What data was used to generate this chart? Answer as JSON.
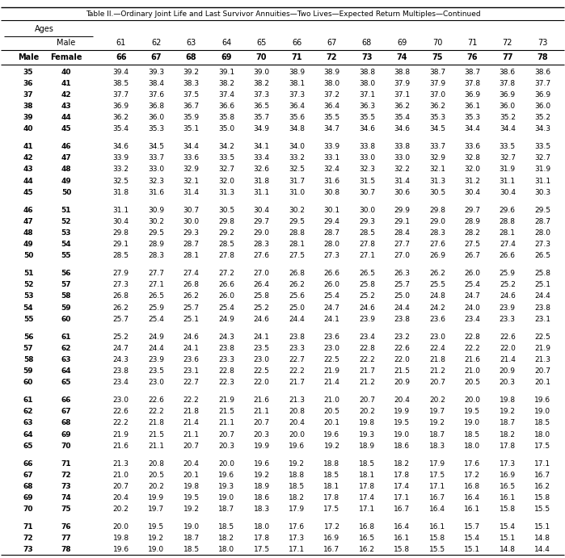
{
  "title": "Table II.—Ordinary Joint Life and Last Survivor Annuities—Two Lives—Expected Return Multiples—Continued",
  "header_ages_label": "Ages",
  "header_male_col": "Male",
  "header_male_ages": [
    "61",
    "62",
    "63",
    "64",
    "65",
    "66",
    "67",
    "68",
    "69",
    "70",
    "71",
    "72",
    "73"
  ],
  "header_female_row_label_male": "Male",
  "header_female_row_label_female": "Female",
  "header_female_ages": [
    "66",
    "67",
    "68",
    "69",
    "70",
    "71",
    "72",
    "73",
    "74",
    "75",
    "76",
    "77",
    "78"
  ],
  "row_groups": [
    {
      "rows": [
        {
          "male": "35",
          "female": "40",
          "vals": [
            39.4,
            39.3,
            39.2,
            39.1,
            39.0,
            38.9,
            38.9,
            38.8,
            38.8,
            38.7,
            38.7,
            38.6,
            38.6
          ]
        },
        {
          "male": "36",
          "female": "41",
          "vals": [
            38.5,
            38.4,
            38.3,
            38.2,
            38.2,
            38.1,
            38.0,
            38.0,
            37.9,
            37.9,
            37.8,
            37.8,
            37.7
          ]
        },
        {
          "male": "37",
          "female": "42",
          "vals": [
            37.7,
            37.6,
            37.5,
            37.4,
            37.3,
            37.3,
            37.2,
            37.1,
            37.1,
            37.0,
            36.9,
            36.9,
            36.9
          ]
        },
        {
          "male": "38",
          "female": "43",
          "vals": [
            36.9,
            36.8,
            36.7,
            36.6,
            36.5,
            36.4,
            36.4,
            36.3,
            36.2,
            36.2,
            36.1,
            36.0,
            36.0
          ]
        },
        {
          "male": "39",
          "female": "44",
          "vals": [
            36.2,
            36.0,
            35.9,
            35.8,
            35.7,
            35.6,
            35.5,
            35.5,
            35.4,
            35.3,
            35.3,
            35.2,
            35.2
          ]
        },
        {
          "male": "40",
          "female": "45",
          "vals": [
            35.4,
            35.3,
            35.1,
            35.0,
            34.9,
            34.8,
            34.7,
            34.6,
            34.6,
            34.5,
            34.4,
            34.4,
            34.3
          ]
        }
      ]
    },
    {
      "rows": [
        {
          "male": "41",
          "female": "46",
          "vals": [
            34.6,
            34.5,
            34.4,
            34.2,
            34.1,
            34.0,
            33.9,
            33.8,
            33.8,
            33.7,
            33.6,
            33.5,
            33.5
          ]
        },
        {
          "male": "42",
          "female": "47",
          "vals": [
            33.9,
            33.7,
            33.6,
            33.5,
            33.4,
            33.2,
            33.1,
            33.0,
            33.0,
            32.9,
            32.8,
            32.7,
            32.7
          ]
        },
        {
          "male": "43",
          "female": "48",
          "vals": [
            33.2,
            33.0,
            32.9,
            32.7,
            32.6,
            32.5,
            32.4,
            32.3,
            32.2,
            32.1,
            32.0,
            31.9,
            31.9
          ]
        },
        {
          "male": "44",
          "female": "49",
          "vals": [
            32.5,
            32.3,
            32.1,
            32.0,
            31.8,
            31.7,
            31.6,
            31.5,
            31.4,
            31.3,
            31.2,
            31.1,
            31.1
          ]
        },
        {
          "male": "45",
          "female": "50",
          "vals": [
            31.8,
            31.6,
            31.4,
            31.3,
            31.1,
            31.0,
            30.8,
            30.7,
            30.6,
            30.5,
            30.4,
            30.4,
            30.3
          ]
        }
      ]
    },
    {
      "rows": [
        {
          "male": "46",
          "female": "51",
          "vals": [
            31.1,
            30.9,
            30.7,
            30.5,
            30.4,
            30.2,
            30.1,
            30.0,
            29.9,
            29.8,
            29.7,
            29.6,
            29.5
          ]
        },
        {
          "male": "47",
          "female": "52",
          "vals": [
            30.4,
            30.2,
            30.0,
            29.8,
            29.7,
            29.5,
            29.4,
            29.3,
            29.1,
            29.0,
            28.9,
            28.8,
            28.7
          ]
        },
        {
          "male": "48",
          "female": "53",
          "vals": [
            29.8,
            29.5,
            29.3,
            29.2,
            29.0,
            28.8,
            28.7,
            28.5,
            28.4,
            28.3,
            28.2,
            28.1,
            28.0
          ]
        },
        {
          "male": "49",
          "female": "54",
          "vals": [
            29.1,
            28.9,
            28.7,
            28.5,
            28.3,
            28.1,
            28.0,
            27.8,
            27.7,
            27.6,
            27.5,
            27.4,
            27.3
          ]
        },
        {
          "male": "50",
          "female": "55",
          "vals": [
            28.5,
            28.3,
            28.1,
            27.8,
            27.6,
            27.5,
            27.3,
            27.1,
            27.0,
            26.9,
            26.7,
            26.6,
            26.5
          ]
        }
      ]
    },
    {
      "rows": [
        {
          "male": "51",
          "female": "56",
          "vals": [
            27.9,
            27.7,
            27.4,
            27.2,
            27.0,
            26.8,
            26.6,
            26.5,
            26.3,
            26.2,
            26.0,
            25.9,
            25.8
          ]
        },
        {
          "male": "52",
          "female": "57",
          "vals": [
            27.3,
            27.1,
            26.8,
            26.6,
            26.4,
            26.2,
            26.0,
            25.8,
            25.7,
            25.5,
            25.4,
            25.2,
            25.1
          ]
        },
        {
          "male": "53",
          "female": "58",
          "vals": [
            26.8,
            26.5,
            26.2,
            26.0,
            25.8,
            25.6,
            25.4,
            25.2,
            25.0,
            24.8,
            24.7,
            24.6,
            24.4
          ]
        },
        {
          "male": "54",
          "female": "59",
          "vals": [
            26.2,
            25.9,
            25.7,
            25.4,
            25.2,
            25.0,
            24.7,
            24.6,
            24.4,
            24.2,
            24.0,
            23.9,
            23.8
          ]
        },
        {
          "male": "55",
          "female": "60",
          "vals": [
            25.7,
            25.4,
            25.1,
            24.9,
            24.6,
            24.4,
            24.1,
            23.9,
            23.8,
            23.6,
            23.4,
            23.3,
            23.1
          ]
        }
      ]
    },
    {
      "rows": [
        {
          "male": "56",
          "female": "61",
          "vals": [
            25.2,
            24.9,
            24.6,
            24.3,
            24.1,
            23.8,
            23.6,
            23.4,
            23.2,
            23.0,
            22.8,
            22.6,
            22.5
          ]
        },
        {
          "male": "57",
          "female": "62",
          "vals": [
            24.7,
            24.4,
            24.1,
            23.8,
            23.5,
            23.3,
            23.0,
            22.8,
            22.6,
            22.4,
            22.2,
            22.0,
            21.9
          ]
        },
        {
          "male": "58",
          "female": "63",
          "vals": [
            24.3,
            23.9,
            23.6,
            23.3,
            23.0,
            22.7,
            22.5,
            22.2,
            22.0,
            21.8,
            21.6,
            21.4,
            21.3
          ]
        },
        {
          "male": "59",
          "female": "64",
          "vals": [
            23.8,
            23.5,
            23.1,
            22.8,
            22.5,
            22.2,
            21.9,
            21.7,
            21.5,
            21.2,
            21.0,
            20.9,
            20.7
          ]
        },
        {
          "male": "60",
          "female": "65",
          "vals": [
            23.4,
            23.0,
            22.7,
            22.3,
            22.0,
            21.7,
            21.4,
            21.2,
            20.9,
            20.7,
            20.5,
            20.3,
            20.1
          ]
        }
      ]
    },
    {
      "rows": [
        {
          "male": "61",
          "female": "66",
          "vals": [
            23.0,
            22.6,
            22.2,
            21.9,
            21.6,
            21.3,
            21.0,
            20.7,
            20.4,
            20.2,
            20.0,
            19.8,
            19.6
          ]
        },
        {
          "male": "62",
          "female": "67",
          "vals": [
            22.6,
            22.2,
            21.8,
            21.5,
            21.1,
            20.8,
            20.5,
            20.2,
            19.9,
            19.7,
            19.5,
            19.2,
            19.0
          ]
        },
        {
          "male": "63",
          "female": "68",
          "vals": [
            22.2,
            21.8,
            21.4,
            21.1,
            20.7,
            20.4,
            20.1,
            19.8,
            19.5,
            19.2,
            19.0,
            18.7,
            18.5
          ]
        },
        {
          "male": "64",
          "female": "69",
          "vals": [
            21.9,
            21.5,
            21.1,
            20.7,
            20.3,
            20.0,
            19.6,
            19.3,
            19.0,
            18.7,
            18.5,
            18.2,
            18.0
          ]
        },
        {
          "male": "65",
          "female": "70",
          "vals": [
            21.6,
            21.1,
            20.7,
            20.3,
            19.9,
            19.6,
            19.2,
            18.9,
            18.6,
            18.3,
            18.0,
            17.8,
            17.5
          ]
        }
      ]
    },
    {
      "rows": [
        {
          "male": "66",
          "female": "71",
          "vals": [
            21.3,
            20.8,
            20.4,
            20.0,
            19.6,
            19.2,
            18.8,
            18.5,
            18.2,
            17.9,
            17.6,
            17.3,
            17.1
          ]
        },
        {
          "male": "67",
          "female": "72",
          "vals": [
            21.0,
            20.5,
            20.1,
            19.6,
            19.2,
            18.8,
            18.5,
            18.1,
            17.8,
            17.5,
            17.2,
            16.9,
            16.7
          ]
        },
        {
          "male": "68",
          "female": "73",
          "vals": [
            20.7,
            20.2,
            19.8,
            19.3,
            18.9,
            18.5,
            18.1,
            17.8,
            17.4,
            17.1,
            16.8,
            16.5,
            16.2
          ]
        },
        {
          "male": "69",
          "female": "74",
          "vals": [
            20.4,
            19.9,
            19.5,
            19.0,
            18.6,
            18.2,
            17.8,
            17.4,
            17.1,
            16.7,
            16.4,
            16.1,
            15.8
          ]
        },
        {
          "male": "70",
          "female": "75",
          "vals": [
            20.2,
            19.7,
            19.2,
            18.7,
            18.3,
            17.9,
            17.5,
            17.1,
            16.7,
            16.4,
            16.1,
            15.8,
            15.5
          ]
        }
      ]
    },
    {
      "rows": [
        {
          "male": "71",
          "female": "76",
          "vals": [
            20.0,
            19.5,
            19.0,
            18.5,
            18.0,
            17.6,
            17.2,
            16.8,
            16.4,
            16.1,
            15.7,
            15.4,
            15.1
          ]
        },
        {
          "male": "72",
          "female": "77",
          "vals": [
            19.8,
            19.2,
            18.7,
            18.2,
            17.8,
            17.3,
            16.9,
            16.5,
            16.1,
            15.8,
            15.4,
            15.1,
            14.8
          ]
        },
        {
          "male": "73",
          "female": "78",
          "vals": [
            19.6,
            19.0,
            18.5,
            18.0,
            17.5,
            17.1,
            16.7,
            16.2,
            15.8,
            15.5,
            15.1,
            14.8,
            14.4
          ]
        }
      ]
    }
  ],
  "title_fontsize": 6.5,
  "header_fontsize": 7.0,
  "data_fontsize": 6.5,
  "bg_color": "white",
  "text_color": "black",
  "line_color": "black"
}
